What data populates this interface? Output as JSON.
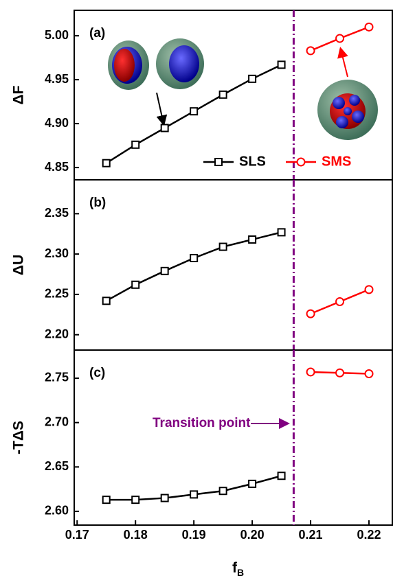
{
  "chart_data": [
    {
      "type": "line",
      "panel_label": "(a)",
      "y_label": "ΔF",
      "ylim": [
        4.836,
        5.029
      ],
      "yticks": [
        4.85,
        {
          "value": 4.9,
          "label": "4.90"
        },
        4.95,
        {
          "value": 5.0,
          "label": "5.00"
        }
      ],
      "vline": {
        "x": 0.2071,
        "color": "#800080"
      },
      "legend": "bottom-right",
      "series": [
        {
          "name": "SLS",
          "color": "#000000",
          "marker": "square",
          "x": [
            0.175,
            0.18,
            0.185,
            0.19,
            0.195,
            0.2,
            0.205
          ],
          "values": [
            4.855,
            4.876,
            4.895,
            4.914,
            4.933,
            4.951,
            4.967
          ]
        },
        {
          "name": "SMS",
          "color": "#ff0000",
          "marker": "circle",
          "x": [
            0.21,
            0.215,
            0.22
          ],
          "values": [
            4.983,
            4.997,
            5.01
          ]
        }
      ]
    },
    {
      "type": "line",
      "panel_label": "(b)",
      "y_label": "ΔU",
      "ylim": [
        2.181,
        2.392
      ],
      "yticks": [
        {
          "value": 2.2,
          "label": "2.20"
        },
        2.25,
        {
          "value": 2.3,
          "label": "2.30"
        },
        2.35
      ],
      "vline": {
        "x": 0.2071,
        "color": "#800080"
      },
      "series": [
        {
          "name": "SLS",
          "color": "#000000",
          "marker": "square",
          "x": [
            0.175,
            0.18,
            0.185,
            0.19,
            0.195,
            0.2,
            0.205
          ],
          "values": [
            2.242,
            2.262,
            2.279,
            2.295,
            2.309,
            2.318,
            2.327
          ]
        },
        {
          "name": "SMS",
          "color": "#ff0000",
          "marker": "circle",
          "x": [
            0.21,
            0.215,
            0.22
          ],
          "values": [
            2.226,
            2.241,
            2.256
          ]
        }
      ]
    },
    {
      "type": "line",
      "panel_label": "(c)",
      "y_label": "-TΔS",
      "ylim": [
        2.5845,
        2.7817
      ],
      "yticks": [
        {
          "value": 2.6,
          "label": "2.60"
        },
        2.65,
        {
          "value": 2.7,
          "label": "2.70"
        },
        2.75
      ],
      "vline": {
        "x": 0.2071,
        "color": "#800080"
      },
      "annotation": "Transition point",
      "xlim": [
        0.1695,
        0.224
      ],
      "xticks": [
        0.17,
        0.18,
        0.19,
        {
          "value": 0.2,
          "label": "0.20"
        },
        0.21,
        0.22
      ],
      "x_label": {
        "text": "f",
        "subscript": "B"
      },
      "series": [
        {
          "name": "SLS",
          "color": "#000000",
          "marker": "square",
          "x": [
            0.175,
            0.18,
            0.185,
            0.19,
            0.195,
            0.2,
            0.205
          ],
          "values": [
            2.613,
            2.613,
            2.615,
            2.619,
            2.623,
            2.631,
            2.64
          ]
        },
        {
          "name": "SMS",
          "color": "#ff0000",
          "marker": "circle",
          "x": [
            0.21,
            0.215,
            0.22
          ],
          "values": [
            2.757,
            2.756,
            2.755
          ]
        }
      ]
    }
  ]
}
